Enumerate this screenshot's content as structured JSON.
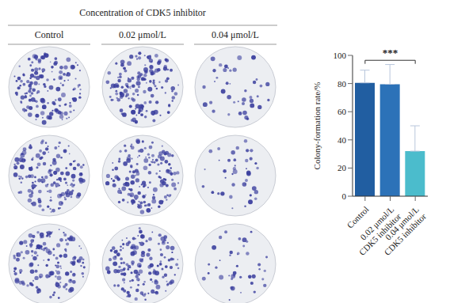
{
  "plates": {
    "title": "Concentration of CDK5 inhibitor",
    "columns": [
      "Control",
      "0.02 μmol/L",
      "0.04 μmol/L"
    ]
  },
  "chart_data": {
    "type": "bar",
    "ylabel": "Colony-formation rate/%",
    "categories": [
      "Control",
      "0.02 μmol/L\nCDK5 inhibitor",
      "0.04 μmol/L\nCDK5 inhibitor"
    ],
    "values": [
      80.5,
      79.5,
      32
    ],
    "errors": [
      9,
      14,
      18
    ],
    "colors": [
      "#215ea1",
      "#2c72b8",
      "#4bbccc"
    ],
    "ylim": [
      0,
      100
    ],
    "yticks": [
      0,
      20,
      40,
      60,
      80,
      100
    ],
    "annotations": [
      {
        "text": "***",
        "from": 0,
        "to": 2
      }
    ]
  }
}
